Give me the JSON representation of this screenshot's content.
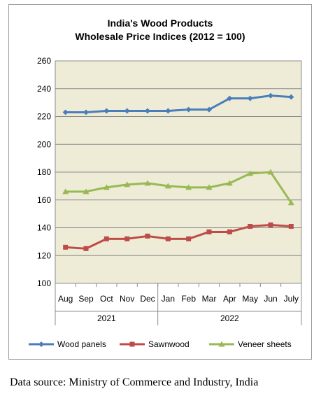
{
  "chart_data": {
    "type": "line",
    "title_lines": [
      "India's Wood Products",
      "Wholesale Price Indices (2012 = 100)"
    ],
    "categories": [
      "Aug",
      "Sep",
      "Oct",
      "Nov",
      "Dec",
      "Jan",
      "Feb",
      "Mar",
      "Apr",
      "May",
      "Jun",
      "July"
    ],
    "year_groups": [
      {
        "label": "2021",
        "start": 0,
        "end": 4
      },
      {
        "label": "2022",
        "start": 5,
        "end": 11
      }
    ],
    "ylim": [
      100,
      260
    ],
    "yticks": [
      100,
      120,
      140,
      160,
      180,
      200,
      220,
      240,
      260
    ],
    "grid": "horizontal",
    "legend_position": "bottom",
    "series": [
      {
        "name": "Wood panels",
        "color": "#4a7ebb",
        "marker": "diamond",
        "values": [
          223,
          223,
          224,
          224,
          224,
          224,
          225,
          225,
          233,
          233,
          235,
          234
        ]
      },
      {
        "name": "Sawnwood",
        "color": "#be4b48",
        "marker": "square",
        "values": [
          126,
          125,
          132,
          132,
          134,
          132,
          132,
          137,
          137,
          141,
          142,
          141
        ]
      },
      {
        "name": "Veneer sheets",
        "color": "#98b954",
        "marker": "triangle",
        "values": [
          166,
          166,
          169,
          171,
          172,
          170,
          169,
          169,
          172,
          179,
          180,
          158
        ]
      }
    ],
    "plot_background": "#eeecd6"
  },
  "source_text": "Data source: Ministry of Commerce and Industry, India"
}
